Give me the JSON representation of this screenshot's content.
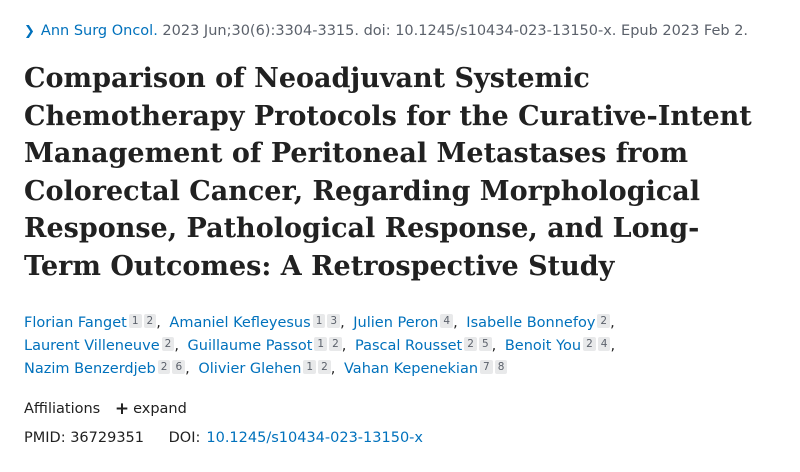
{
  "citation": {
    "journal": "Ann Surg Oncol.",
    "details": "2023 Jun;30(6):3304-3315. doi: 10.1245/s10434-023-13150-x. Epub 2023 Feb 2.",
    "chevron_icon": "chevron-right-icon"
  },
  "title": "Comparison of Neoadjuvant Systemic Chemotherapy Protocols for the Curative-Intent Management of Peritoneal Metastases from Colorectal Cancer, Regarding Morphological Response, Pathological Response, and Long-Term Outcomes: A Retrospective Study",
  "authors": [
    {
      "name": "Florian Fanget",
      "affs": [
        "1",
        "2"
      ]
    },
    {
      "name": "Amaniel Kefleyesus",
      "affs": [
        "1",
        "3"
      ]
    },
    {
      "name": "Julien Peron",
      "affs": [
        "4"
      ]
    },
    {
      "name": "Isabelle Bonnefoy",
      "affs": [
        "2"
      ]
    },
    {
      "name": "Laurent Villeneuve",
      "affs": [
        "2"
      ]
    },
    {
      "name": "Guillaume Passot",
      "affs": [
        "1",
        "2"
      ]
    },
    {
      "name": "Pascal Rousset",
      "affs": [
        "2",
        "5"
      ]
    },
    {
      "name": "Benoit You",
      "affs": [
        "2",
        "4"
      ]
    },
    {
      "name": "Nazim Benzerdjeb",
      "affs": [
        "2",
        "6"
      ]
    },
    {
      "name": "Olivier Glehen",
      "affs": [
        "1",
        "2"
      ]
    },
    {
      "name": "Vahan Kepenekian",
      "affs": [
        "7",
        "8"
      ]
    }
  ],
  "affiliations": {
    "label": "Affiliations",
    "expand_label": "expand",
    "expand_icon": "plus-icon"
  },
  "ids": {
    "pmid_label": "PMID:",
    "pmid": "36729351",
    "doi_label": "DOI:",
    "doi": "10.1245/s10434-023-13150-x"
  },
  "colors": {
    "link": "#0071bc",
    "text": "#212121",
    "muted": "#5b616b",
    "badge_bg": "#e8e9ea"
  }
}
